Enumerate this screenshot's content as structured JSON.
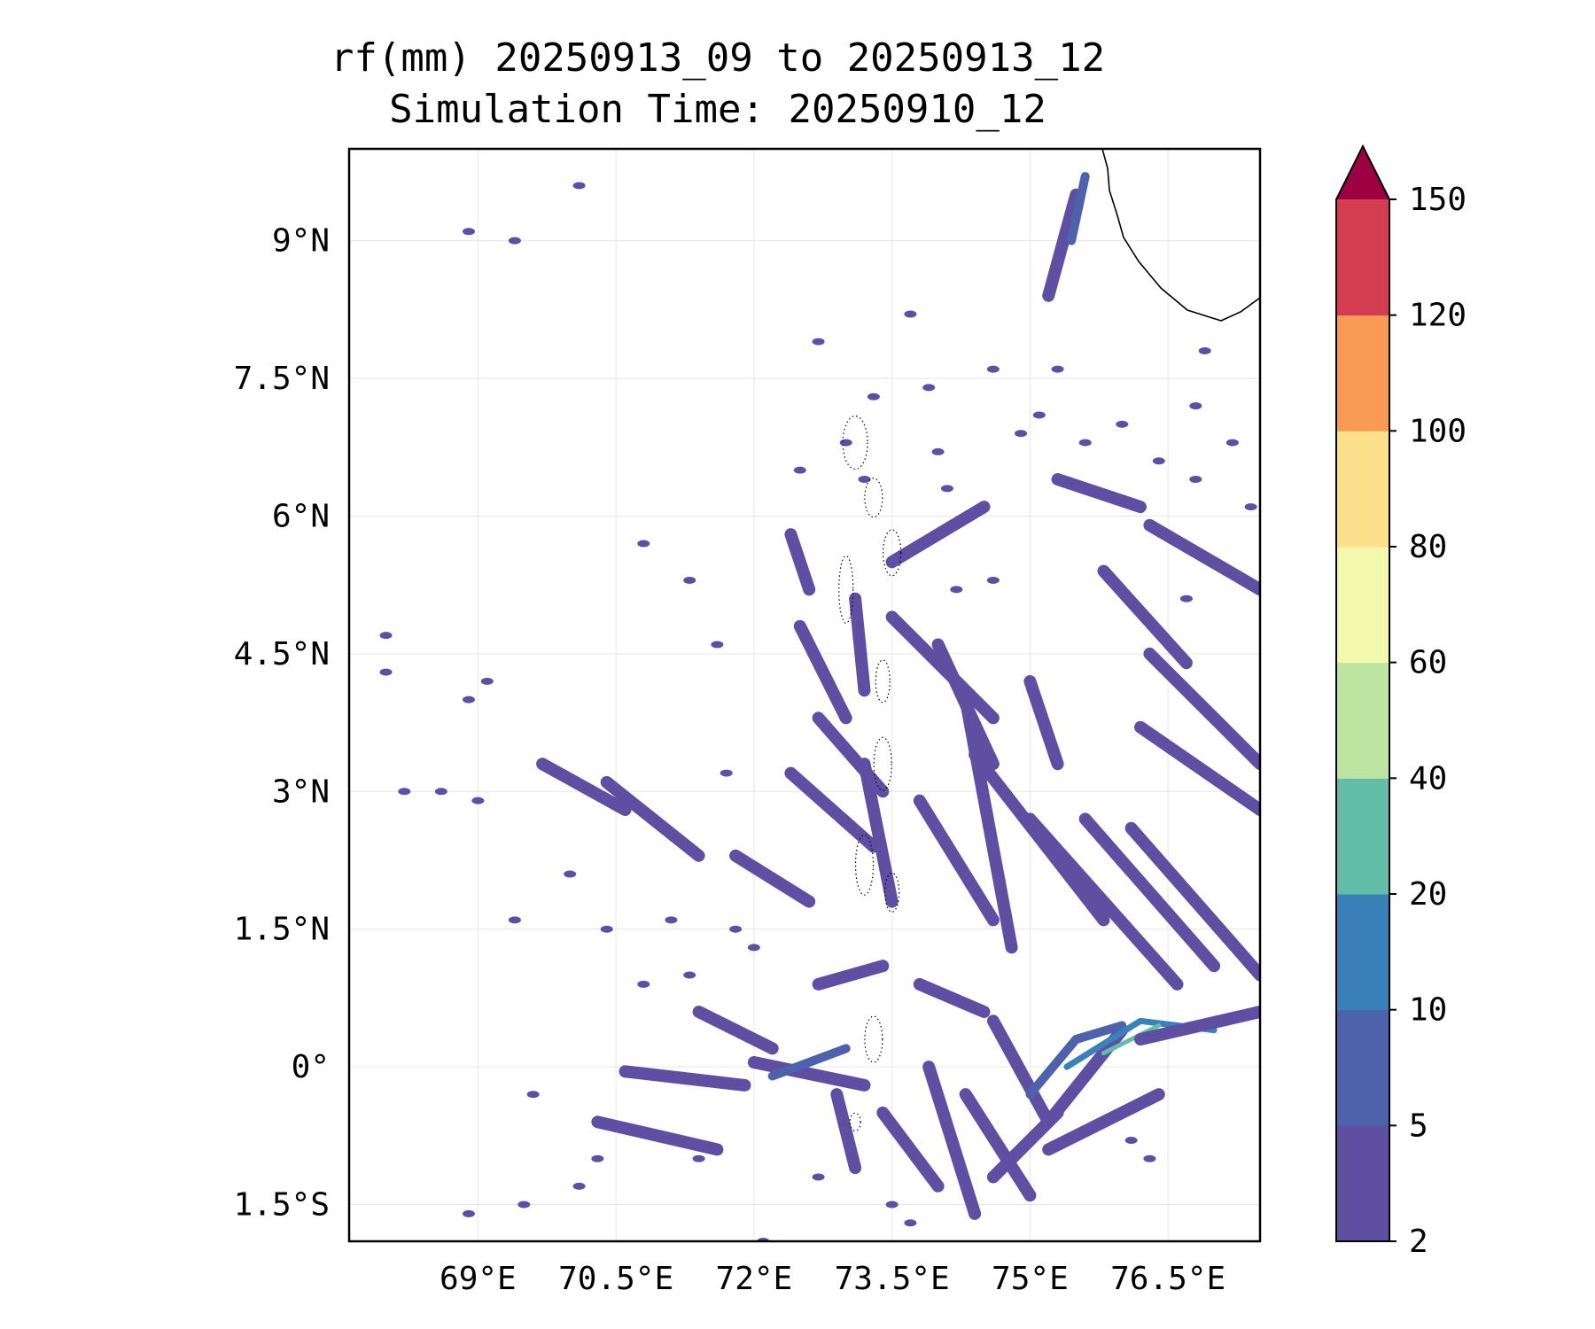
{
  "title": {
    "line1": "rf(mm) 20250913_09 to 20250913_12",
    "line2": "Simulation Time: 20250910_12"
  },
  "map": {
    "lon_range": [
      67.6,
      77.5
    ],
    "lat_range": [
      -1.9,
      10.0
    ],
    "lon_ticks": [
      69,
      70.5,
      72,
      73.5,
      75,
      76.5
    ],
    "lon_tick_labels": [
      "69°E",
      "70.5°E",
      "72°E",
      "73.5°E",
      "75°E",
      "76.5°E"
    ],
    "lat_ticks": [
      9,
      7.5,
      6,
      4.5,
      3,
      1.5,
      0,
      -1.5
    ],
    "lat_tick_labels": [
      "9°N",
      "7.5°N",
      "6°N",
      "4.5°N",
      "3°N",
      "1.5°N",
      "0°",
      "1.5°S"
    ],
    "grid": true,
    "coastline": "India southern tip (top-right corner)",
    "islands": "Maldives atolls (dotted, near 73.5°E)"
  },
  "colorbar": {
    "levels": [
      2,
      5,
      10,
      20,
      40,
      60,
      80,
      100,
      120,
      150
    ],
    "level_labels": [
      "2",
      "5",
      "10",
      "20",
      "40",
      "60",
      "80",
      "100",
      "120",
      "150"
    ],
    "colors": [
      "#5e4fa2",
      "#4e62ab",
      "#3a80b9",
      "#62bca8",
      "#bde4a0",
      "#f3f9ad",
      "#fde08b",
      "#f99b57",
      "#d43d50"
    ],
    "extend_color": "#9e0142",
    "extend": "max"
  },
  "rain_colors": {
    "light": "#5e4fa2",
    "moderate": "#4e62ab",
    "heavy": "#3a80b9",
    "peak": "#62bca8"
  },
  "rain_bands": [
    {
      "points": [
        [
          75.2,
          8.4
        ],
        [
          75.5,
          9.5
        ]
      ],
      "level": "light"
    },
    {
      "points": [
        [
          75.45,
          9.0
        ],
        [
          75.6,
          9.7
        ]
      ],
      "level": "moderate"
    },
    {
      "points": [
        [
          76.3,
          5.9
        ],
        [
          77.5,
          5.2
        ]
      ],
      "level": "light"
    },
    {
      "points": [
        [
          75.3,
          6.4
        ],
        [
          76.2,
          6.1
        ]
      ],
      "level": "light"
    },
    {
      "points": [
        [
          75.8,
          5.4
        ],
        [
          76.7,
          4.4
        ]
      ],
      "level": "light"
    },
    {
      "points": [
        [
          76.3,
          4.5
        ],
        [
          77.5,
          3.3
        ]
      ],
      "level": "light"
    },
    {
      "points": [
        [
          76.2,
          3.7
        ],
        [
          77.5,
          2.8
        ]
      ],
      "level": "light"
    },
    {
      "points": [
        [
          75.0,
          4.2
        ],
        [
          75.3,
          3.3
        ]
      ],
      "level": "light"
    },
    {
      "points": [
        [
          74.4,
          3.4
        ],
        [
          75.8,
          1.6
        ]
      ],
      "level": "light"
    },
    {
      "points": [
        [
          75.0,
          2.7
        ],
        [
          76.6,
          0.9
        ]
      ],
      "level": "light"
    },
    {
      "points": [
        [
          75.6,
          2.7
        ],
        [
          77.0,
          1.1
        ]
      ],
      "level": "light"
    },
    {
      "points": [
        [
          76.1,
          2.6
        ],
        [
          77.5,
          1.0
        ]
      ],
      "level": "light"
    },
    {
      "points": [
        [
          74.3,
          4.0
        ],
        [
          74.8,
          1.3
        ]
      ],
      "level": "light"
    },
    {
      "points": [
        [
          73.8,
          2.9
        ],
        [
          74.6,
          1.6
        ]
      ],
      "level": "light"
    },
    {
      "points": [
        [
          74.0,
          4.6
        ],
        [
          74.6,
          3.3
        ]
      ],
      "level": "light"
    },
    {
      "points": [
        [
          73.2,
          3.3
        ],
        [
          73.5,
          1.8
        ]
      ],
      "level": "light"
    },
    {
      "points": [
        [
          72.4,
          3.2
        ],
        [
          73.3,
          2.4
        ]
      ],
      "level": "light"
    },
    {
      "points": [
        [
          71.8,
          2.3
        ],
        [
          72.6,
          1.8
        ]
      ],
      "level": "light"
    },
    {
      "points": [
        [
          70.4,
          3.1
        ],
        [
          71.4,
          2.3
        ]
      ],
      "level": "light"
    },
    {
      "points": [
        [
          69.7,
          3.3
        ],
        [
          70.6,
          2.8
        ]
      ],
      "level": "light"
    },
    {
      "points": [
        [
          72.7,
          3.8
        ],
        [
          73.4,
          3.0
        ]
      ],
      "level": "light"
    },
    {
      "points": [
        [
          72.5,
          4.8
        ],
        [
          73.0,
          3.8
        ]
      ],
      "level": "light"
    },
    {
      "points": [
        [
          73.1,
          5.1
        ],
        [
          73.2,
          4.1
        ]
      ],
      "level": "light"
    },
    {
      "points": [
        [
          73.5,
          4.9
        ],
        [
          74.6,
          3.8
        ]
      ],
      "level": "light"
    },
    {
      "points": [
        [
          72.6,
          5.2
        ],
        [
          72.4,
          5.8
        ]
      ],
      "level": "light"
    },
    {
      "points": [
        [
          73.5,
          5.5
        ],
        [
          74.5,
          6.1
        ]
      ],
      "level": "light"
    },
    {
      "points": [
        [
          72.7,
          0.9
        ],
        [
          73.4,
          1.1
        ]
      ],
      "level": "light"
    },
    {
      "points": [
        [
          71.4,
          0.6
        ],
        [
          72.2,
          0.2
        ]
      ],
      "level": "light"
    },
    {
      "points": [
        [
          72.0,
          0.05
        ],
        [
          73.2,
          -0.2
        ]
      ],
      "level": "light"
    },
    {
      "points": [
        [
          70.6,
          -0.05
        ],
        [
          71.9,
          -0.2
        ]
      ],
      "level": "light"
    },
    {
      "points": [
        [
          70.3,
          -0.6
        ],
        [
          71.6,
          -0.9
        ]
      ],
      "level": "light"
    },
    {
      "points": [
        [
          72.2,
          -0.1
        ],
        [
          73.0,
          0.2
        ]
      ],
      "level": "moderate"
    },
    {
      "points": [
        [
          72.9,
          -0.3
        ],
        [
          73.1,
          -1.1
        ]
      ],
      "level": "light"
    },
    {
      "points": [
        [
          73.4,
          -0.5
        ],
        [
          74.0,
          -1.3
        ]
      ],
      "level": "light"
    },
    {
      "points": [
        [
          73.9,
          0.0
        ],
        [
          74.4,
          -1.6
        ]
      ],
      "level": "light"
    },
    {
      "points": [
        [
          74.3,
          -0.3
        ],
        [
          75.0,
          -1.4
        ]
      ],
      "level": "light"
    },
    {
      "points": [
        [
          74.6,
          0.5
        ],
        [
          75.2,
          -0.6
        ]
      ],
      "level": "light"
    },
    {
      "points": [
        [
          73.8,
          0.9
        ],
        [
          74.5,
          0.6
        ]
      ],
      "level": "light"
    },
    {
      "points": [
        [
          75.2,
          -0.6
        ],
        [
          76.0,
          0.4
        ]
      ],
      "level": "light"
    },
    {
      "points": [
        [
          75.0,
          -0.3
        ],
        [
          75.5,
          0.3
        ],
        [
          76.0,
          0.45
        ]
      ],
      "level": "moderate"
    },
    {
      "points": [
        [
          75.4,
          0.0
        ],
        [
          76.2,
          0.5
        ],
        [
          77.0,
          0.4
        ]
      ],
      "level": "heavy"
    },
    {
      "points": [
        [
          75.8,
          0.15
        ],
        [
          76.4,
          0.45
        ]
      ],
      "level": "peak"
    },
    {
      "points": [
        [
          76.2,
          0.3
        ],
        [
          77.5,
          0.6
        ]
      ],
      "level": "light"
    },
    {
      "points": [
        [
          75.2,
          -0.9
        ],
        [
          76.4,
          -0.3
        ]
      ],
      "level": "light"
    },
    {
      "points": [
        [
          74.6,
          -1.2
        ],
        [
          75.3,
          -0.5
        ]
      ],
      "level": "light"
    }
  ],
  "rain_specks": [
    [
      70.1,
      9.6
    ],
    [
      68.9,
      9.1
    ],
    [
      69.4,
      9.0
    ],
    [
      75.6,
      6.8
    ],
    [
      76.0,
      7.0
    ],
    [
      76.4,
      6.6
    ],
    [
      76.8,
      7.2
    ],
    [
      74.9,
      6.9
    ],
    [
      75.1,
      7.1
    ],
    [
      74.6,
      7.6
    ],
    [
      73.7,
      8.2
    ],
    [
      72.7,
      7.9
    ],
    [
      73.3,
      7.3
    ],
    [
      73.9,
      7.4
    ],
    [
      75.3,
      7.6
    ],
    [
      76.9,
      7.8
    ],
    [
      73.0,
      6.8
    ],
    [
      73.2,
      6.4
    ],
    [
      74.0,
      6.7
    ],
    [
      70.8,
      5.7
    ],
    [
      71.6,
      4.6
    ],
    [
      71.3,
      5.3
    ],
    [
      69.1,
      4.2
    ],
    [
      68.0,
      4.3
    ],
    [
      69.4,
      1.6
    ],
    [
      71.1,
      1.6
    ],
    [
      70.4,
      1.5
    ],
    [
      71.8,
      1.5
    ],
    [
      70.8,
      0.9
    ],
    [
      70.3,
      -1.0
    ],
    [
      70.1,
      -1.3
    ],
    [
      69.5,
      -1.5
    ],
    [
      68.9,
      -1.6
    ],
    [
      72.1,
      -1.9
    ],
    [
      73.7,
      -1.7
    ],
    [
      71.4,
      -1.0
    ],
    [
      76.1,
      -0.8
    ],
    [
      76.3,
      -1.0
    ],
    [
      69.0,
      2.9
    ],
    [
      68.6,
      3.0
    ],
    [
      68.2,
      3.0
    ],
    [
      68.0,
      4.7
    ],
    [
      68.9,
      4.0
    ],
    [
      70.0,
      2.1
    ],
    [
      69.6,
      -0.3
    ],
    [
      77.2,
      6.8
    ],
    [
      76.8,
      6.4
    ],
    [
      77.4,
      6.1
    ],
    [
      76.7,
      5.1
    ],
    [
      72.5,
      6.5
    ],
    [
      74.1,
      6.3
    ],
    [
      74.6,
      5.3
    ],
    [
      74.2,
      5.2
    ],
    [
      71.7,
      3.2
    ],
    [
      71.3,
      1.0
    ],
    [
      72.0,
      1.3
    ],
    [
      73.5,
      -1.5
    ],
    [
      72.7,
      -1.2
    ]
  ]
}
